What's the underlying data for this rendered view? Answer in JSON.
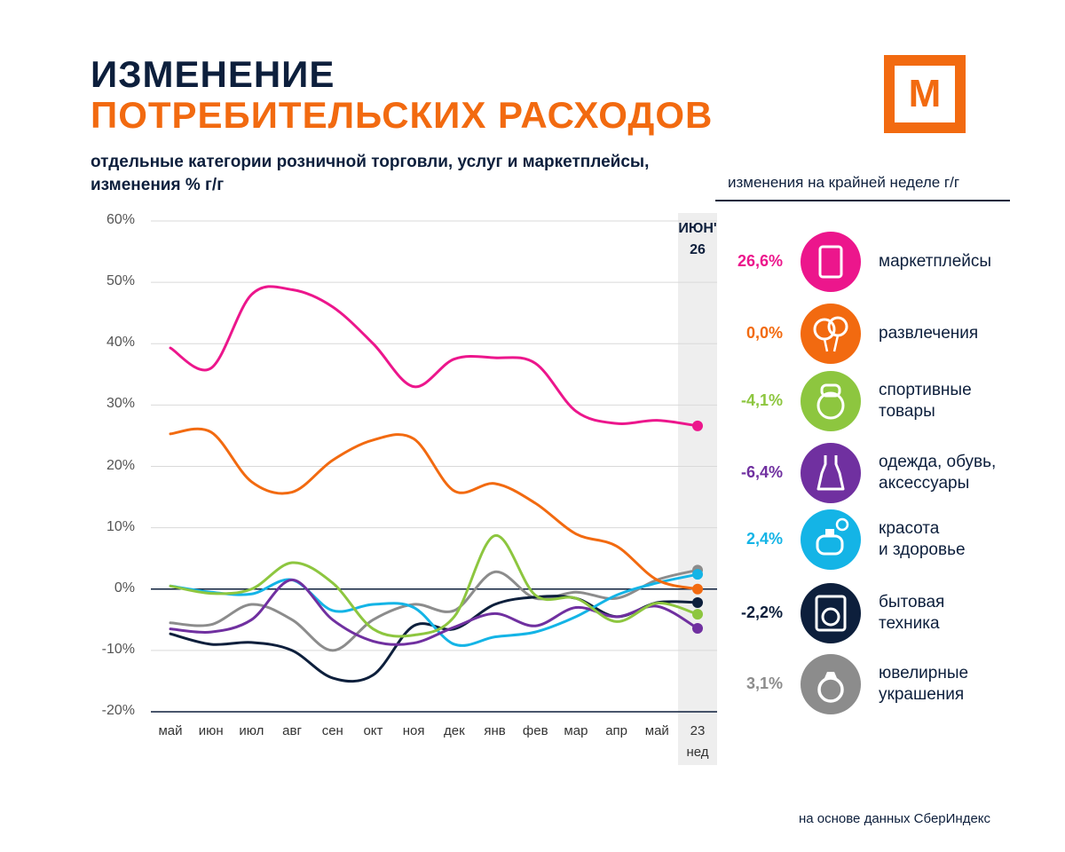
{
  "header": {
    "title_line1": "ИЗМЕНЕНИЕ",
    "title_line2": "ПОТРЕБИТЕЛЬСКИХ РАСХОДОВ",
    "subtitle": "отдельные категории розничной торговли, услуг  и маркетплейсы,\nизменения % г/г",
    "logo": "M",
    "source": "на основе данных СберИндекс"
  },
  "chart_data": {
    "type": "line",
    "legend_title": "изменения на крайней неделе г/г",
    "highlight_label": "ИЮН'\n26",
    "categories": [
      "май",
      "июн",
      "июл",
      "авг",
      "сен",
      "окт",
      "ноя",
      "дек",
      "янв",
      "фев",
      "мар",
      "апр",
      "май",
      "23\nнед"
    ],
    "ylim": [
      -20,
      60
    ],
    "yticks": [
      {
        "value": -20,
        "label": "-20%"
      },
      {
        "value": -10,
        "label": "-10%"
      },
      {
        "value": 0,
        "label": "0%"
      },
      {
        "value": 10,
        "label": "10%"
      },
      {
        "value": 20,
        "label": "20%"
      },
      {
        "value": 30,
        "label": "30%"
      },
      {
        "value": 40,
        "label": "40%"
      },
      {
        "value": 50,
        "label": "50%"
      },
      {
        "value": 60,
        "label": "60%"
      }
    ],
    "grid": true,
    "series": [
      {
        "name": "маркетплейсы",
        "color": "#ec168c",
        "values": [
          39.3,
          36,
          48,
          48.8,
          46,
          40,
          33,
          37.5,
          37.7,
          36.8,
          29,
          27,
          27.5,
          26.6
        ],
        "value_label": "26,6%"
      },
      {
        "name": "развлечения",
        "color": "#f26a10",
        "values": [
          25.3,
          25.6,
          17.5,
          15.8,
          21,
          24.3,
          24.5,
          16,
          17.2,
          14,
          9,
          7,
          1.5,
          0.0
        ],
        "value_label": "0,0%"
      },
      {
        "name": "спортивные\nтовары",
        "color": "#8dc63f",
        "values": [
          0.5,
          -0.7,
          0,
          4.3,
          1,
          -6.5,
          -7.5,
          -4.5,
          8.7,
          -1,
          -1.5,
          -5.3,
          -2.3,
          -4.1
        ],
        "value_label": "-4,1%"
      },
      {
        "name": "одежда, обувь,\nаксессуары",
        "color": "#7030a0",
        "values": [
          -6.5,
          -7,
          -5,
          1.5,
          -5,
          -8.5,
          -8.8,
          -6.2,
          -4,
          -6,
          -3,
          -4.5,
          -2.8,
          -6.4
        ],
        "value_label": "-6,4%"
      },
      {
        "name": "красота\nи здоровье",
        "color": "#14b4e6",
        "values": [
          0.5,
          -0.5,
          -0.8,
          1.5,
          -3.5,
          -2.5,
          -3,
          -9,
          -7.8,
          -7,
          -4.5,
          -1,
          1,
          2.4
        ],
        "value_label": "2,4%"
      },
      {
        "name": "бытовая\nтехника",
        "color": "#0d1f3c",
        "values": [
          -7.3,
          -9,
          -8.7,
          -10,
          -14.5,
          -14,
          -6,
          -6.5,
          -2.5,
          -1.3,
          -1.5,
          -4.5,
          -2.2,
          -2.2
        ],
        "value_label": "-2,2%"
      },
      {
        "name": "ювелирные\nукрашения",
        "color": "#8c8c8c",
        "values": [
          -5.5,
          -5.8,
          -2.5,
          -5,
          -10,
          -5,
          -2.5,
          -3.5,
          2.8,
          -1.5,
          -0.5,
          -1.5,
          1.5,
          3.1
        ],
        "value_label": "3,1%"
      }
    ]
  }
}
